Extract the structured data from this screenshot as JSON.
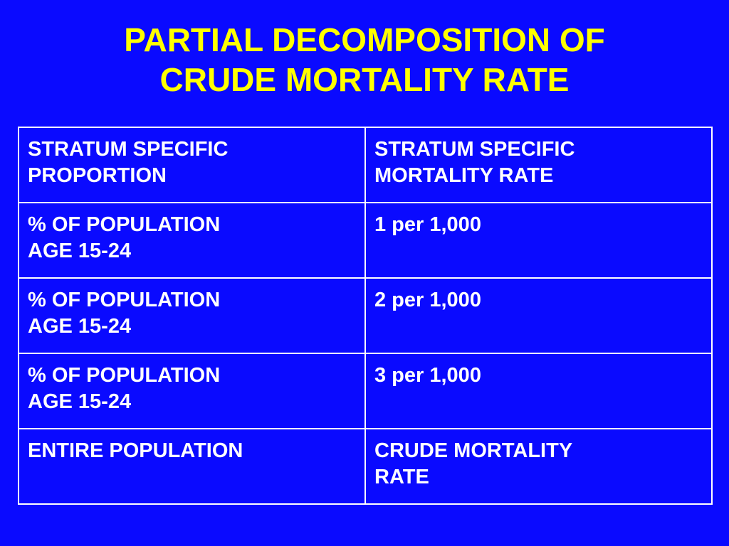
{
  "slide": {
    "title_line1": "PARTIAL DECOMPOSITION OF",
    "title_line2": "CRUDE MORTALITY RATE",
    "background_color": "#0a0aff",
    "title_color": "#ffff00",
    "text_color": "#ffffff"
  },
  "table": {
    "rows": [
      {
        "col1": [
          "STRATUM SPECIFIC",
          "PROPORTION"
        ],
        "col2": [
          "STRATUM SPECIFIC",
          "MORTALITY RATE"
        ]
      },
      {
        "col1": [
          "% OF POPULATION",
          "AGE 15-24"
        ],
        "col2": [
          "1 per 1,000",
          ""
        ]
      },
      {
        "col1": [
          "% OF POPULATION",
          "AGE 15-24"
        ],
        "col2": [
          "2 per 1,000",
          ""
        ]
      },
      {
        "col1": [
          "% OF POPULATION",
          "AGE 15-24"
        ],
        "col2": [
          "3 per 1,000",
          ""
        ]
      },
      {
        "col1": [
          "ENTIRE POPULATION",
          ""
        ],
        "col2": [
          "CRUDE MORTALITY",
          "RATE"
        ]
      }
    ]
  }
}
